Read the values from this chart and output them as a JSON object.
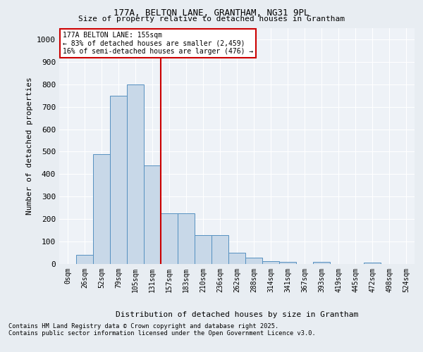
{
  "title1": "177A, BELTON LANE, GRANTHAM, NG31 9PL",
  "title2": "Size of property relative to detached houses in Grantham",
  "xlabel": "Distribution of detached houses by size in Grantham",
  "ylabel": "Number of detached properties",
  "categories": [
    "0sqm",
    "26sqm",
    "52sqm",
    "79sqm",
    "105sqm",
    "131sqm",
    "157sqm",
    "183sqm",
    "210sqm",
    "236sqm",
    "262sqm",
    "288sqm",
    "314sqm",
    "341sqm",
    "367sqm",
    "393sqm",
    "419sqm",
    "445sqm",
    "472sqm",
    "498sqm",
    "524sqm"
  ],
  "values": [
    0,
    40,
    490,
    750,
    800,
    440,
    225,
    225,
    130,
    130,
    50,
    28,
    12,
    8,
    0,
    8,
    0,
    0,
    5,
    0,
    0
  ],
  "bar_width": 1.0,
  "bar_facecolor": "#c8d8e8",
  "bar_edgecolor": "#5590c0",
  "vline_x": 6,
  "vline_color": "#cc0000",
  "annotation_title": "177A BELTON LANE: 155sqm",
  "annotation_line1": "← 83% of detached houses are smaller (2,459)",
  "annotation_line2": "16% of semi-detached houses are larger (476) →",
  "annotation_box_edgecolor": "#cc0000",
  "annotation_box_facecolor": "#ffffff",
  "ylim": [
    0,
    1050
  ],
  "yticks": [
    0,
    100,
    200,
    300,
    400,
    500,
    600,
    700,
    800,
    900,
    1000
  ],
  "bg_color": "#e8edf2",
  "plot_bg_color": "#eef2f7",
  "footer1": "Contains HM Land Registry data © Crown copyright and database right 2025.",
  "footer2": "Contains public sector information licensed under the Open Government Licence v3.0."
}
